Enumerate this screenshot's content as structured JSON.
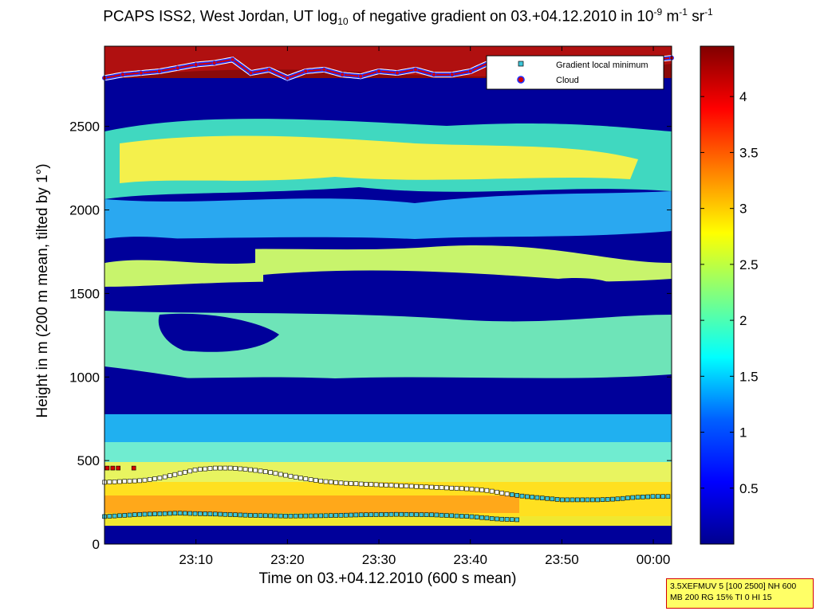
{
  "title": {
    "part1": "PCAPS ISS2, West Jordan, UT log",
    "sub10": "10",
    "part2": " of negative gradient on 03.+04.12.2010 in 10",
    "sup1": "-9",
    "part3": " m",
    "sup2": "-1",
    "part4": " sr",
    "sup3": "-1"
  },
  "infobox": {
    "line1": "3.5XEFMUV 5 [100 2500] NH 600",
    "line2": "MB 200 RG 15% TI 0 HI 15"
  },
  "chart_data": {
    "type": "heatmap",
    "xlabel": "Time on 03.+04.12.2010 (600 s mean)",
    "ylabel": "Height in m (200 m mean, tilted by 1°)",
    "x_ticks": [
      "23:10",
      "23:20",
      "23:30",
      "23:40",
      "23:50",
      "00:00"
    ],
    "x_tick_minutes": [
      10,
      20,
      30,
      40,
      50,
      60
    ],
    "xlim_minutes": [
      0,
      62
    ],
    "y_ticks": [
      0,
      500,
      1000,
      1500,
      2000,
      2500
    ],
    "ylim": [
      0,
      2980
    ],
    "colorbar": {
      "ticks": [
        0.5,
        1,
        1.5,
        2,
        2.5,
        3,
        3.5,
        4
      ],
      "range": [
        0,
        4.45
      ],
      "colormap": "jet",
      "colors": [
        "#00008f",
        "#0000ff",
        "#0080ff",
        "#00ffff",
        "#80ff80",
        "#ffff00",
        "#ff8000",
        "#ff0000",
        "#800000"
      ]
    },
    "legend": {
      "position": "top-right",
      "entries": [
        {
          "label": "Gradient local minimum",
          "color": "#3ec6d8",
          "marker": "square"
        },
        {
          "label": "Cloud",
          "color": "#d40000",
          "edge": "#2030ff",
          "marker": "circle"
        }
      ]
    },
    "cloud_base": {
      "x_minutes": [
        0,
        2,
        4,
        6,
        8,
        10,
        12,
        14,
        16,
        18,
        20,
        22,
        24,
        26,
        28,
        30,
        32,
        34,
        36,
        38,
        40,
        42,
        44,
        46,
        48,
        50,
        52,
        54,
        56,
        58,
        60,
        62
      ],
      "height_m": [
        2790,
        2810,
        2820,
        2830,
        2850,
        2870,
        2880,
        2900,
        2820,
        2840,
        2790,
        2830,
        2840,
        2810,
        2800,
        2830,
        2820,
        2840,
        2810,
        2810,
        2830,
        2880,
        2850,
        2870,
        2880,
        2870,
        2880,
        2890,
        2860,
        2880,
        2900,
        2910
      ]
    },
    "gradient_min_upper": {
      "x_minutes": [
        0,
        2,
        4,
        6,
        8,
        10,
        12,
        14,
        16,
        18,
        20,
        22,
        24,
        26,
        28,
        30,
        32,
        34,
        36,
        38,
        40,
        42,
        44,
        46,
        48,
        50,
        52,
        54,
        56,
        58,
        60,
        62
      ],
      "height_m": [
        370,
        375,
        380,
        395,
        420,
        445,
        455,
        455,
        445,
        430,
        410,
        390,
        375,
        365,
        360,
        355,
        350,
        345,
        340,
        335,
        330,
        320,
        300,
        285,
        275,
        265,
        265,
        265,
        270,
        280,
        285,
        285
      ]
    },
    "gradient_min_lower": {
      "x_minutes": [
        0,
        4,
        8,
        12,
        16,
        20,
        24,
        28,
        32,
        36,
        40,
        43,
        45.5
      ],
      "height_m": [
        165,
        178,
        185,
        180,
        172,
        168,
        170,
        175,
        178,
        175,
        165,
        150,
        145
      ]
    },
    "cloud_low_markers": {
      "x_minutes": [
        0.3,
        0.9,
        1.5,
        3.2
      ],
      "height_m": [
        455,
        455,
        455,
        455
      ]
    }
  }
}
